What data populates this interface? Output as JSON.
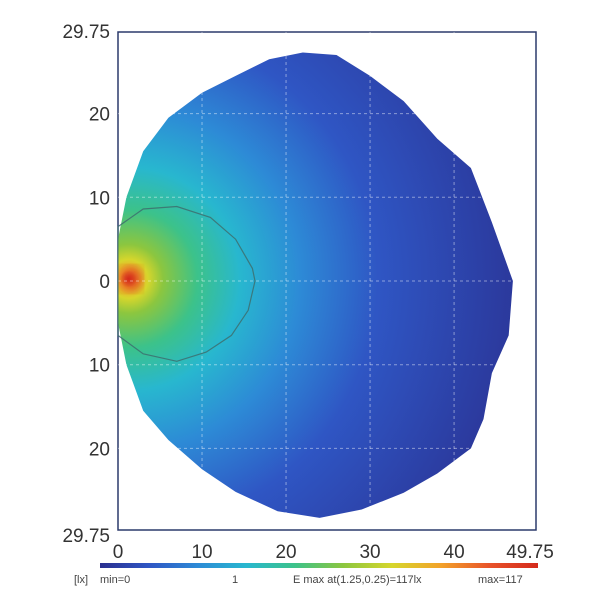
{
  "chart_data": {
    "type": "heatmap",
    "title": "",
    "xlabel": "",
    "ylabel": "",
    "xlim": [
      0,
      49.75
    ],
    "ylim": [
      -29.75,
      29.75
    ],
    "x_ticks": [
      {
        "value": 0,
        "label": "0"
      },
      {
        "value": 10,
        "label": "10"
      },
      {
        "value": 20,
        "label": "20"
      },
      {
        "value": 30,
        "label": "30"
      },
      {
        "value": 40,
        "label": "40"
      },
      {
        "value": 49.75,
        "label": "49.75"
      }
    ],
    "y_ticks": [
      {
        "value": 29.75,
        "label": "29.75"
      },
      {
        "value": 20,
        "label": "20"
      },
      {
        "value": 10,
        "label": "10"
      },
      {
        "value": 0,
        "label": "0"
      },
      {
        "value": -10,
        "label": "10"
      },
      {
        "value": -20,
        "label": "20"
      },
      {
        "value": -29.75,
        "label": "29.75"
      }
    ],
    "grid": true,
    "colorbar": {
      "unit_label": "[lx]",
      "min_label": "min=0",
      "mid_label": "1",
      "emax_label": "E max at(1.25,0.25)=117lx",
      "max_label": "max=117",
      "min": 0,
      "max": 117,
      "colors": [
        "#2a2f8f",
        "#2f56c4",
        "#2d8ad6",
        "#28b7cf",
        "#3cc28a",
        "#8cc63f",
        "#d6d62c",
        "#f2a22a",
        "#e8532a",
        "#d42a1c"
      ]
    },
    "peak": {
      "x": 1.25,
      "y": 0.25,
      "value": 117
    },
    "boundary": [
      [
        0,
        5
      ],
      [
        1,
        10
      ],
      [
        3,
        15.5
      ],
      [
        6,
        19.5
      ],
      [
        10,
        22.5
      ],
      [
        14,
        24.5
      ],
      [
        18,
        26.5
      ],
      [
        22,
        27.3
      ],
      [
        26,
        27
      ],
      [
        30,
        24.5
      ],
      [
        34,
        21.5
      ],
      [
        38,
        17
      ],
      [
        42,
        13.5
      ],
      [
        44.5,
        7
      ],
      [
        47,
        0
      ],
      [
        46.5,
        -6.5
      ],
      [
        44.5,
        -11
      ],
      [
        43.5,
        -16.5
      ],
      [
        42,
        -20
      ],
      [
        38,
        -23
      ],
      [
        34,
        -25.3
      ],
      [
        29,
        -27.3
      ],
      [
        24,
        -28.3
      ],
      [
        19,
        -27.5
      ],
      [
        14,
        -25.2
      ],
      [
        10,
        -22.5
      ],
      [
        6,
        -19
      ],
      [
        3,
        -15.5
      ],
      [
        1,
        -10
      ],
      [
        0,
        -5
      ]
    ],
    "contour": [
      [
        0,
        6.5
      ],
      [
        3,
        8.6
      ],
      [
        7,
        8.9
      ],
      [
        11,
        7.6
      ],
      [
        14,
        5
      ],
      [
        16,
        1.5
      ],
      [
        16.3,
        0
      ],
      [
        15.5,
        -3.5
      ],
      [
        13.5,
        -6.5
      ],
      [
        10.5,
        -8.5
      ],
      [
        7,
        -9.6
      ],
      [
        3,
        -8.7
      ],
      [
        0,
        -6.5
      ]
    ]
  }
}
